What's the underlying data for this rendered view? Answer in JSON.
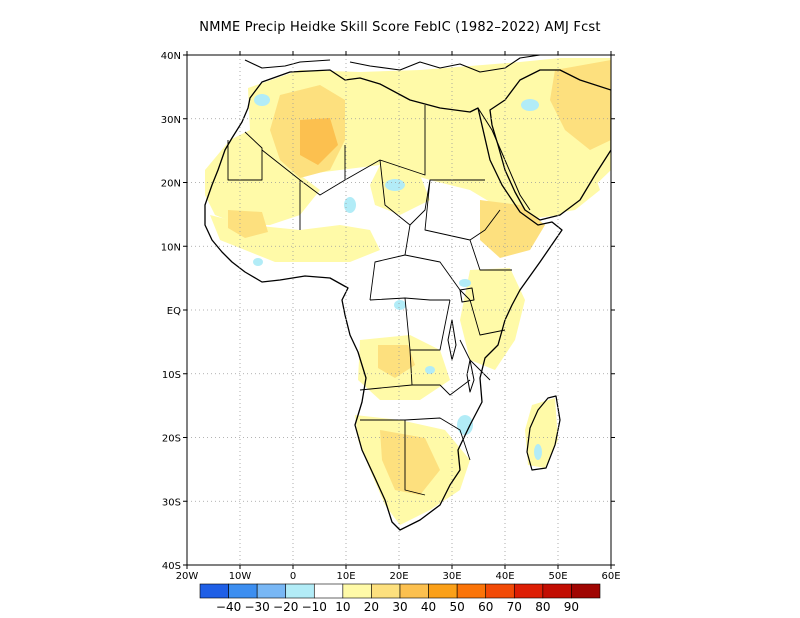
{
  "title": "NMME Precip Heidke Skill Score FebIC (1982–2022) AMJ Fcst",
  "axes": {
    "lat_labels": [
      "40N",
      "30N",
      "20N",
      "10N",
      "EQ",
      "10S",
      "20S",
      "30S",
      "40S"
    ],
    "lon_labels": [
      "20W",
      "10W",
      "0",
      "10E",
      "20E",
      "30E",
      "40E",
      "50E",
      "60E"
    ],
    "lat_range": [
      -40,
      40
    ],
    "lon_range": [
      -20,
      60
    ],
    "grid": "dotted"
  },
  "colorbar": {
    "colors": [
      "#1f5fe6",
      "#3c8ef0",
      "#78b7f5",
      "#b2ecf7",
      "#ffffff",
      "#fffaa8",
      "#fde07e",
      "#fcc04f",
      "#fba018",
      "#fb7408",
      "#f24a06",
      "#dd1e04",
      "#c20d02",
      "#a00502"
    ],
    "labels": [
      "−40",
      "−30",
      "−20",
      "−10",
      "10",
      "20",
      "30",
      "40",
      "50",
      "60",
      "70",
      "80",
      "90"
    ]
  },
  "colors": {
    "coast": "#000000",
    "grid": "#9a9a9a",
    "shade_10": "#fffaa8",
    "shade_20": "#fde07e",
    "shade_30": "#fcc04f",
    "shade_neg10": "#b2ecf7"
  }
}
